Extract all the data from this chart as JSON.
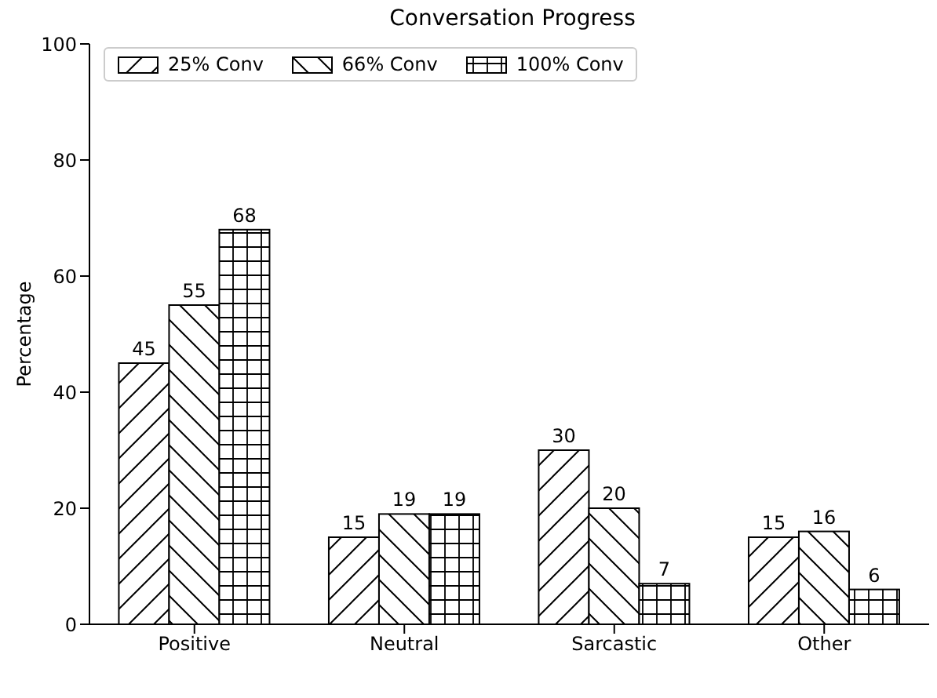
{
  "chart_data": {
    "type": "bar",
    "title": "Conversation Progress",
    "ylabel": "Percentage",
    "categories": [
      "Positive",
      "Neutral",
      "Sarcastic",
      "Other"
    ],
    "series": [
      {
        "name": "25% Conv",
        "color": "#ffffff",
        "values": [
          45,
          15,
          30,
          15
        ]
      },
      {
        "name": "66% Conv",
        "color": "#ffffff",
        "values": [
          55,
          19,
          20,
          16
        ]
      },
      {
        "name": "100% Conv",
        "color": "#ffffff",
        "values": [
          68,
          19,
          7,
          6
        ]
      }
    ],
    "ylim": [
      0,
      100
    ],
    "yticks": [
      0,
      20,
      40,
      60,
      80,
      100
    ],
    "grid": false,
    "legend": "top left",
    "data_labels": true
  }
}
